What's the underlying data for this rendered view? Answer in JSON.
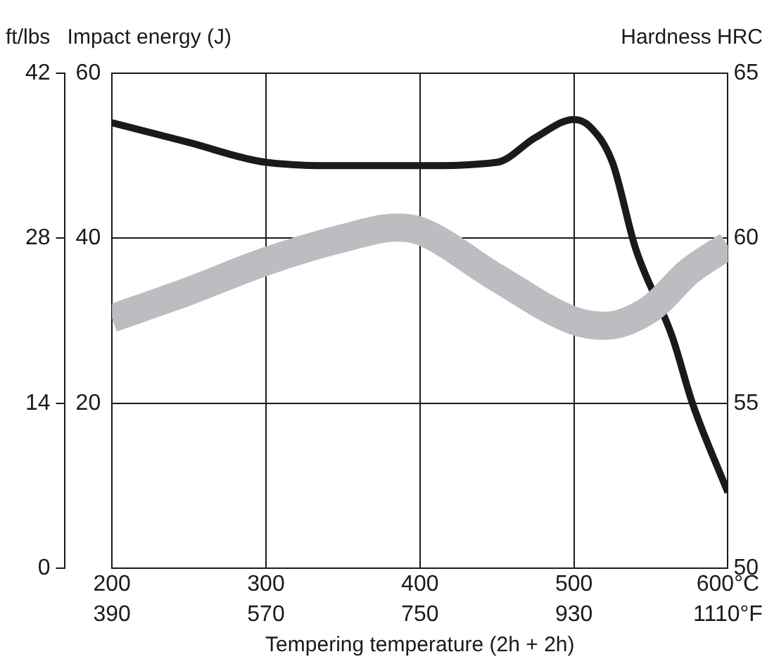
{
  "chart_data": {
    "type": "line",
    "xlabel": "Tempering temperature (2h + 2h)",
    "ylabel": "Impact energy (J)",
    "y2label": "Hardness HRC",
    "y3label": "ft/lbs",
    "xlim": [
      200,
      600
    ],
    "xticks": [
      200,
      300,
      400,
      500,
      {
        "value": 600,
        "label": "600°C"
      }
    ],
    "x2lim": [
      390,
      1110
    ],
    "x2ticks": [
      390,
      570,
      750,
      930,
      {
        "value": 1110,
        "label": "1110°F"
      }
    ],
    "ylim": [
      0,
      60
    ],
    "yticks": [
      20,
      40,
      60
    ],
    "y2lim": [
      50,
      65
    ],
    "y2ticks": [
      50,
      55,
      60,
      65
    ],
    "y3lim": [
      0,
      42
    ],
    "y3ticks": [
      0,
      14,
      28,
      42
    ],
    "grid": true,
    "marker": "none",
    "series": [
      {
        "color": "#bcbdc0",
        "axis": "y",
        "x": [
          200,
          250,
          300,
          350,
          385,
          400,
          450,
          500,
          520,
          550,
          575,
          600
        ],
        "values": [
          30.3,
          33.6,
          37.2,
          40.0,
          41.3,
          40.9,
          35.2,
          30.0,
          29.4,
          31.5,
          36.0,
          39.1
        ]
      },
      {
        "color": "#1a1a1a",
        "axis": "y2",
        "x": [
          200,
          250,
          300,
          350,
          400,
          450,
          475,
          500,
          510,
          525,
          540,
          564,
          577,
          600
        ],
        "values": [
          63.5,
          62.9,
          62.3,
          62.2,
          62.2,
          62.3,
          63.05,
          63.6,
          63.4,
          62.3,
          59.7,
          57.0,
          55,
          52.3
        ]
      }
    ]
  }
}
